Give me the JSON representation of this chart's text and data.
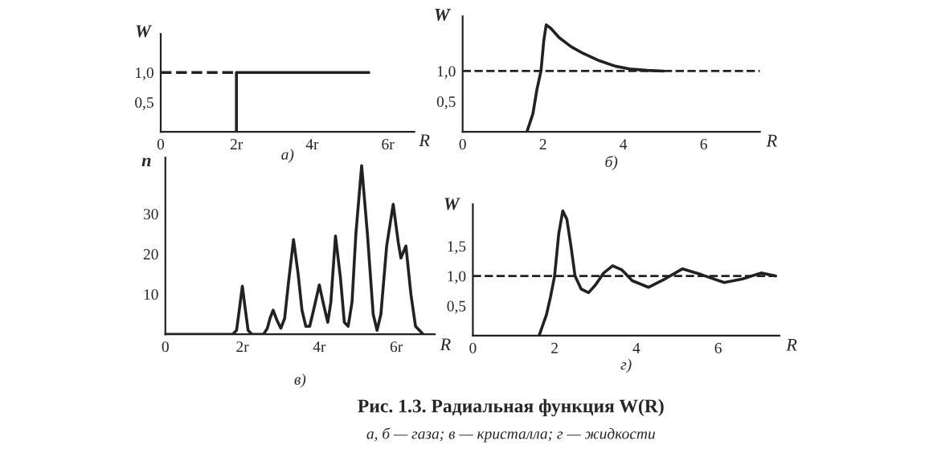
{
  "chart_data": [
    {
      "type": "line",
      "title": "а)",
      "xlabel": "R",
      "ylabel": "W",
      "xlim": [
        0,
        6.7
      ],
      "ylim": [
        0,
        1.65
      ],
      "xticks": [
        {
          "value": 0,
          "label": "0"
        },
        {
          "value": 2,
          "label": "2r"
        },
        {
          "value": 4,
          "label": "4r"
        },
        {
          "value": 6,
          "label": "6r"
        }
      ],
      "yticks": [
        {
          "value": 0.5,
          "label": "0,5"
        },
        {
          "value": 1,
          "label": "1,0"
        }
      ],
      "series": [
        {
          "color": "#222222",
          "line_style": "dashed",
          "x": [
            0,
            2
          ],
          "values": [
            1,
            1
          ]
        },
        {
          "color": "#222222",
          "line_style": "solid",
          "x": [
            2,
            2,
            5.5
          ],
          "values": [
            0,
            1,
            1
          ]
        }
      ]
    },
    {
      "type": "line",
      "title": "б)",
      "xlabel": "R",
      "ylabel": "W",
      "xlim": [
        0,
        7.4
      ],
      "ylim": [
        0,
        1.9
      ],
      "xticks": [
        {
          "value": 0,
          "label": "0"
        },
        2,
        4,
        6
      ],
      "yticks": [
        {
          "value": 0.5,
          "label": "0,5"
        },
        {
          "value": 1,
          "label": "1,0"
        }
      ],
      "ref_lines": [
        {
          "axis": "y",
          "value": 1,
          "color": "#222222",
          "line_style": "dashed"
        }
      ],
      "series": [
        {
          "color": "#222222",
          "line_style": "solid",
          "x": [
            1.6,
            1.75,
            1.85,
            1.95,
            2.02,
            2.08,
            2.2,
            2.4,
            2.7,
            3.0,
            3.4,
            3.8,
            4.2,
            4.6,
            5.0
          ],
          "values": [
            0,
            0.3,
            0.7,
            1.0,
            1.5,
            1.76,
            1.7,
            1.55,
            1.4,
            1.29,
            1.17,
            1.08,
            1.03,
            1.01,
            1.0
          ]
        }
      ]
    },
    {
      "type": "line",
      "title": "в)",
      "xlabel": "R",
      "ylabel": "n",
      "xlim": [
        0,
        7.0
      ],
      "ylim": [
        0,
        44
      ],
      "xticks": [
        {
          "value": 0,
          "label": "0"
        },
        {
          "value": 2,
          "label": "2r"
        },
        {
          "value": 4,
          "label": "4r"
        },
        {
          "value": 6,
          "label": "6r"
        }
      ],
      "yticks": [
        10,
        20,
        30
      ],
      "series": [
        {
          "color": "#222222",
          "line_style": "solid",
          "x": [
            0,
            1.75,
            1.85,
            1.92,
            2.0,
            2.08,
            2.15,
            2.25,
            2.55,
            2.65,
            2.72,
            2.8,
            2.9,
            3.0,
            3.1,
            3.2,
            3.33,
            3.45,
            3.55,
            3.65,
            3.75,
            3.85,
            4.0,
            4.12,
            4.22,
            4.3,
            4.42,
            4.55,
            4.65,
            4.75,
            4.85,
            4.95,
            5.1,
            5.25,
            5.4,
            5.5,
            5.6,
            5.75,
            5.92,
            6.05,
            6.12,
            6.25,
            6.38,
            6.5,
            6.7
          ],
          "values": [
            0,
            0,
            1,
            6,
            12,
            6,
            1,
            0,
            0,
            1.5,
            4,
            6,
            3.5,
            1.5,
            4,
            13,
            23.6,
            15,
            6,
            2,
            2,
            6,
            12.3,
            7,
            3,
            8,
            24.5,
            14,
            3,
            2,
            8,
            25,
            42,
            25,
            5,
            1,
            5,
            22,
            32.4,
            23,
            19,
            22,
            10,
            2,
            0
          ]
        }
      ]
    },
    {
      "type": "line",
      "title": "г)",
      "xlabel": "R",
      "ylabel": "W",
      "xlim": [
        0,
        7.5
      ],
      "ylim": [
        0,
        2.2
      ],
      "xticks": [
        {
          "value": 0,
          "label": "0"
        },
        2,
        4,
        6
      ],
      "yticks": [
        {
          "value": 0.5,
          "label": "0,5"
        },
        {
          "value": 1,
          "label": "1,0"
        },
        {
          "value": 1.5,
          "label": "1,5"
        }
      ],
      "ref_lines": [
        {
          "axis": "y",
          "value": 1,
          "color": "#222222",
          "line_style": "dashed"
        }
      ],
      "annotations": [
        "Рис. 1.3. Радиальная функция W(R)",
        "а, б — газа; в — кристалла; г — жидкости"
      ],
      "series": [
        {
          "color": "#222222",
          "line_style": "solid",
          "x": [
            1.62,
            1.8,
            1.9,
            2.0,
            2.1,
            2.2,
            2.3,
            2.4,
            2.5,
            2.65,
            2.83,
            3.0,
            3.2,
            3.42,
            3.65,
            3.9,
            4.3,
            4.7,
            5.13,
            5.6,
            6.15,
            6.6,
            7.05,
            7.4
          ],
          "values": [
            0,
            0.35,
            0.65,
            1.0,
            1.7,
            2.09,
            1.95,
            1.5,
            1.0,
            0.78,
            0.72,
            0.85,
            1.05,
            1.17,
            1.1,
            0.92,
            0.81,
            0.95,
            1.12,
            1.02,
            0.89,
            0.95,
            1.05,
            1.0
          ]
        }
      ]
    }
  ]
}
